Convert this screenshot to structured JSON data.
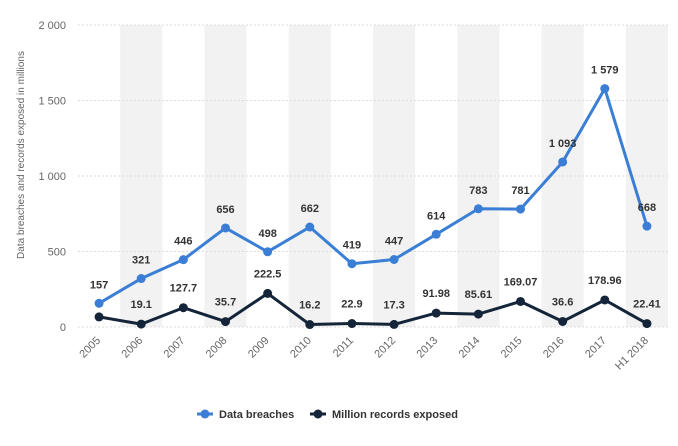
{
  "chart_data": {
    "type": "line",
    "categories": [
      "2005",
      "2006",
      "2007",
      "2008",
      "2009",
      "2010",
      "2011",
      "2012",
      "2013",
      "2014",
      "2015",
      "2016",
      "2017",
      "H1 2018"
    ],
    "ylabel": "Data breaches and records exposed in millions",
    "xlabel": "",
    "ylim": [
      0,
      2000
    ],
    "yticks": [
      0,
      500,
      1000,
      1500,
      2000
    ],
    "ytick_labels": [
      "0",
      "500",
      "1 000",
      "1 500",
      "2 000"
    ],
    "legend_position": "bottom-center",
    "grid": "alternating vertical bands",
    "series": [
      {
        "name": "Data breaches",
        "color": "#3a7fd5",
        "values": [
          157,
          321,
          446,
          656,
          498,
          662,
          419,
          447,
          614,
          783,
          781,
          1093,
          1579,
          668
        ],
        "labels": [
          "157",
          "321",
          "446",
          "656",
          "498",
          "662",
          "419",
          "447",
          "614",
          "783",
          "781",
          "1 093",
          "1 579",
          "668"
        ]
      },
      {
        "name": "Million records exposed",
        "color": "#14253a",
        "values": [
          66.9,
          19.1,
          127.7,
          35.7,
          222.5,
          16.2,
          22.9,
          17.3,
          91.98,
          85.61,
          169.07,
          36.6,
          178.96,
          22.41
        ],
        "labels": [
          "",
          "19.1",
          "127.7",
          "35.7",
          "222.5",
          "16.2",
          "22.9",
          "17.3",
          "91.98",
          "85.61",
          "169.07",
          "36.6",
          "178.96",
          "22.41"
        ]
      }
    ]
  }
}
